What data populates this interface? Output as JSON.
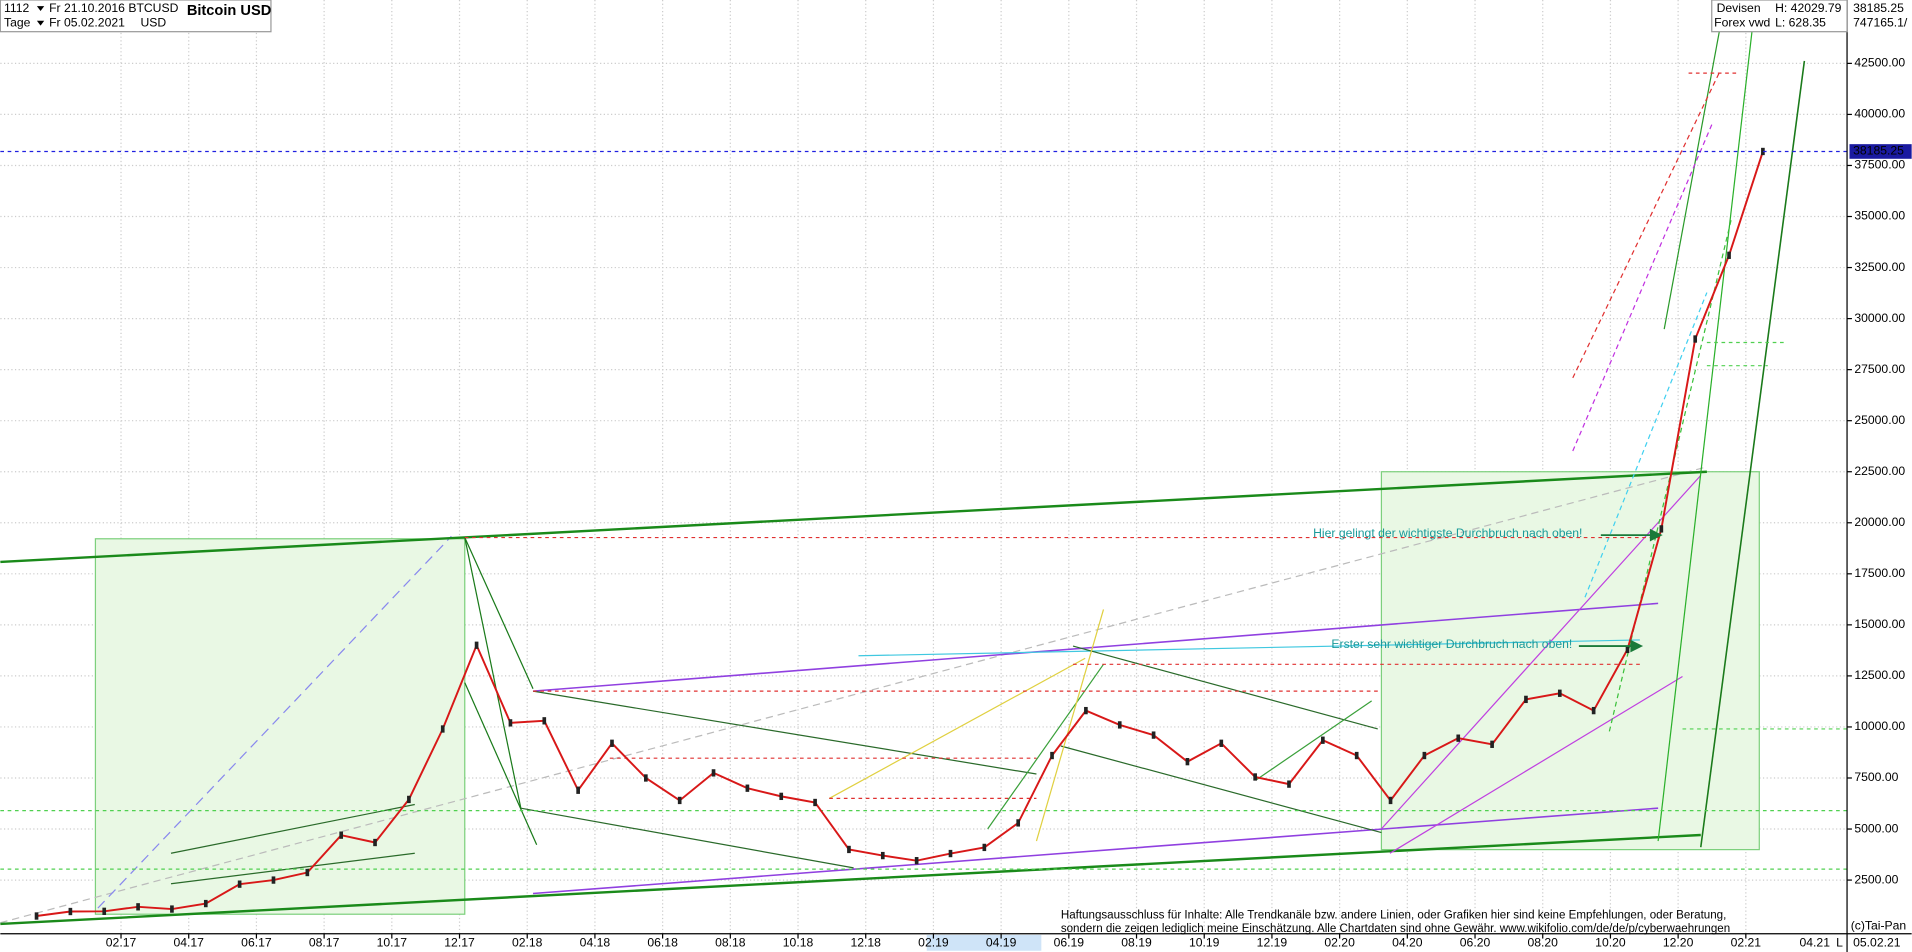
{
  "chart_data": {
    "type": "line",
    "title": "Bitcoin USD",
    "header": {
      "period": "1112",
      "start_date": "Fr 21.10.2016",
      "interval": "Tage",
      "end_date": "Fr 05.02.2021",
      "symbol": "BTCUSD",
      "currency": "USD",
      "market": "Devisen",
      "source": "Forex vwd",
      "high": "H: 42029.79",
      "low": "L: 628.35",
      "last": "38185.25",
      "volume": "747165.1/"
    },
    "last_price": {
      "value": 38185.25,
      "label": "38185.25"
    },
    "annotations": [
      "Hier gelingt der wichtigste Durchbruch nach oben!",
      "Erster sehr wichtiger Durchbruch nach oben!"
    ],
    "disclaimer": [
      "Haftungsausschluss für Inhalte: Alle Trendkanäle bzw. andere Linien, oder Grafiken hier sind keine Empfehlungen, oder Beratung,",
      "sondern die zeigen lediglich meine  Einschätzung. Alle Chartdaten sind ohne Gewähr.  www.wikifolio.com/de/de/p/cyberwaehrungen"
    ],
    "copyright": "(c)Tai-Pan",
    "axis_end_labels": [
      "04.21",
      "L",
      "05.02.21"
    ],
    "categories": [
      "11.16",
      "12.16",
      "01.17",
      "02.17",
      "03.17",
      "04.17",
      "05.17",
      "06.17",
      "07.17",
      "08.17",
      "09.17",
      "10.17",
      "11.17",
      "12.17",
      "01.18",
      "02.18",
      "03.18",
      "04.18",
      "05.18",
      "06.18",
      "07.18",
      "08.18",
      "09.18",
      "10.18",
      "11.18",
      "12.18",
      "01.19",
      "02.19",
      "03.19",
      "04.19",
      "05.19",
      "06.19",
      "07.19",
      "08.19",
      "09.19",
      "10.19",
      "11.19",
      "12.19",
      "01.20",
      "02.20",
      "03.20",
      "04.20",
      "05.20",
      "06.20",
      "07.20",
      "08.20",
      "09.20",
      "10.20",
      "11.20",
      "12.20",
      "01.21",
      "02.21"
    ],
    "series": [
      {
        "name": "BTCUSD",
        "color": "#d81818",
        "values": [
          740,
          960,
          970,
          1190,
          1080,
          1350,
          2300,
          2500,
          2870,
          4700,
          4340,
          6450,
          9900,
          14000,
          10200,
          10300,
          6900,
          9200,
          7500,
          6400,
          7750,
          7000,
          6600,
          6300,
          4000,
          3700,
          3450,
          3800,
          4100,
          5300,
          8600,
          10800,
          10100,
          9600,
          8300,
          9200,
          7550,
          7200,
          9350,
          8600,
          6400,
          8600,
          9450,
          9150,
          11350,
          11650,
          10800,
          13800,
          19700,
          29000,
          33100,
          38185
        ]
      }
    ],
    "xticks": [
      "02.17",
      "04.17",
      "06.17",
      "08.17",
      "10.17",
      "12.17",
      "02.18",
      "04.18",
      "06.18",
      "08.18",
      "10.18",
      "12.18",
      "02.19",
      "04.19",
      "06.19",
      "08.19",
      "10.19",
      "12.19",
      "02.20",
      "04.20",
      "06.20",
      "08.20",
      "10.20",
      "12.20",
      "02.21"
    ],
    "ylim": [
      -127,
      45604
    ],
    "yticks": [
      {
        "value": 2500,
        "label": "2500.00"
      },
      {
        "value": 5000,
        "label": "5000.00"
      },
      {
        "value": 7500,
        "label": "7500.00"
      },
      {
        "value": 10000,
        "label": "10000.00"
      },
      {
        "value": 12500,
        "label": "12500.00"
      },
      {
        "value": 15000,
        "label": "15000.00"
      },
      {
        "value": 17500,
        "label": "17500.00"
      },
      {
        "value": 20000,
        "label": "20000.00"
      },
      {
        "value": 22500,
        "label": "22500.00"
      },
      {
        "value": 25000,
        "label": "25000.00"
      },
      {
        "value": 27500,
        "label": "27500.00"
      },
      {
        "value": 30000,
        "label": "30000.00"
      },
      {
        "value": 32500,
        "label": "32500.00"
      },
      {
        "value": 35000,
        "label": "35000.00"
      },
      {
        "value": 37500,
        "label": "37500.00"
      },
      {
        "value": 40000,
        "label": "40000.00"
      },
      {
        "value": 42500,
        "label": "42500.00"
      }
    ],
    "grid": true
  }
}
